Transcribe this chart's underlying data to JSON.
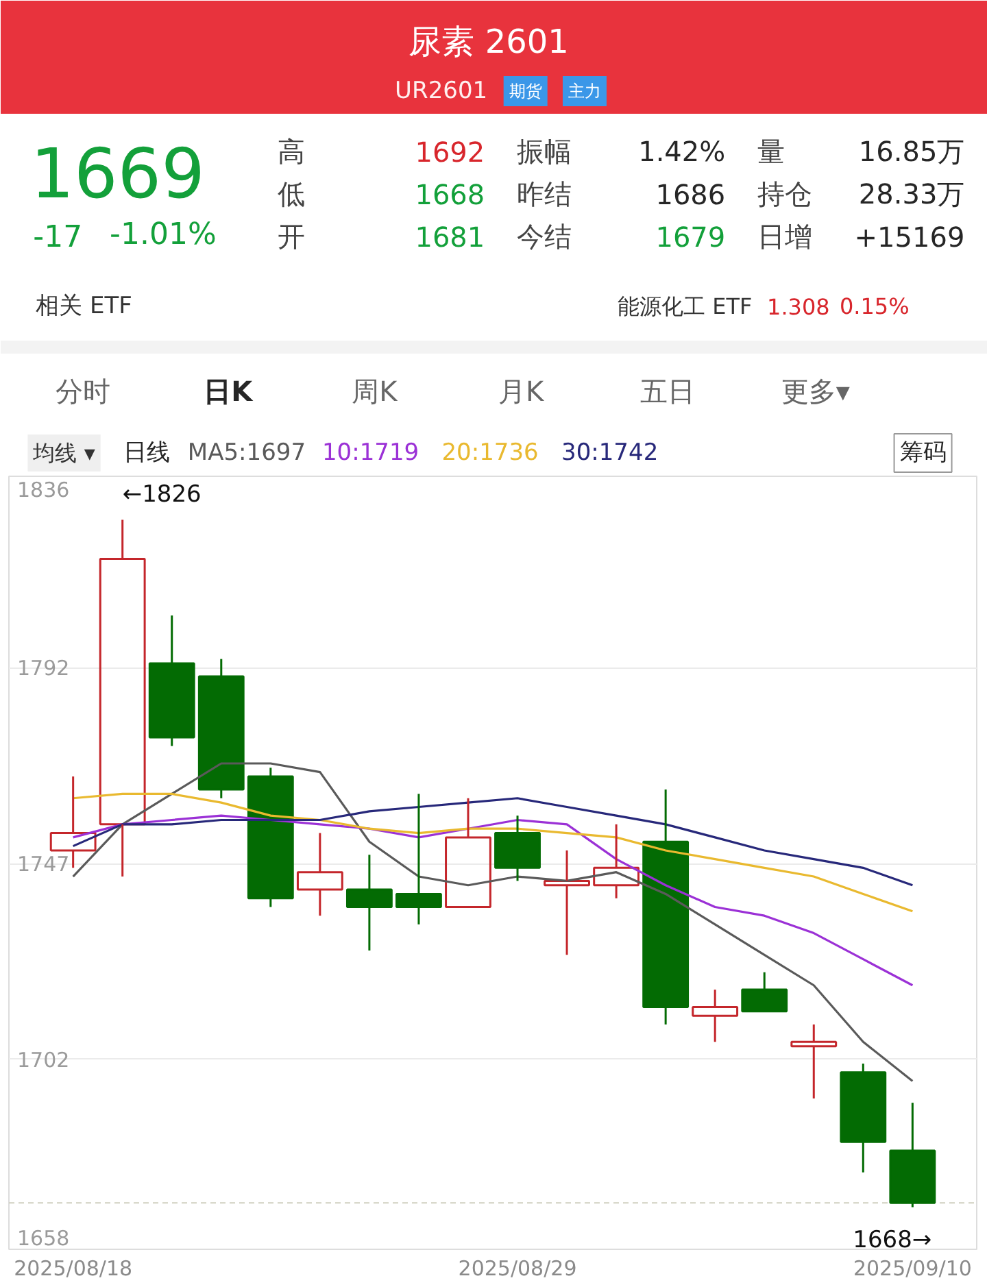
{
  "chart_data": {
    "type": "candlestick",
    "title": "尿素 2601",
    "subtitle": "UR2601",
    "categories": [
      "2025/08/18",
      null,
      null,
      null,
      null,
      null,
      null,
      null,
      null,
      "2025/08/29",
      null,
      null,
      null,
      null,
      null,
      null,
      null,
      "2025/09/10"
    ],
    "ohlc": [
      [
        1750,
        1767,
        1746,
        1754
      ],
      [
        1756,
        1826,
        1744,
        1817
      ],
      [
        1793,
        1804,
        1774,
        1776
      ],
      [
        1790,
        1794,
        1762,
        1764
      ],
      [
        1767,
        1769,
        1737,
        1739
      ],
      [
        1741,
        1754,
        1735,
        1745
      ],
      [
        1741,
        1749,
        1727,
        1737
      ],
      [
        1740,
        1763,
        1733,
        1737
      ],
      [
        1737,
        1762,
        1737,
        1753
      ],
      [
        1754,
        1758,
        1743,
        1746
      ],
      [
        1742,
        1750,
        1726,
        1743
      ],
      [
        1742,
        1756,
        1739,
        1746
      ],
      [
        1752,
        1764,
        1710,
        1714
      ],
      [
        1712,
        1718,
        1706,
        1714
      ],
      [
        1718,
        1722,
        1713,
        1713
      ],
      [
        1705,
        1710,
        1693,
        1706
      ],
      [
        1699,
        1701,
        1676,
        1683
      ],
      [
        1681,
        1692,
        1668,
        1669
      ]
    ],
    "colors": [
      "#c4262b",
      "#c4262b",
      "#036b03",
      "#036b03",
      "#036b03",
      "#c4262b",
      "#036b03",
      "#036b03",
      "#c4262b",
      "#036b03",
      "#c4262b",
      "#c4262b",
      "#036b03",
      "#c4262b",
      "#036b03",
      "#c4262b",
      "#036b03",
      "#036b03"
    ],
    "series": [
      {
        "name": "MA5:1697",
        "type": "line",
        "color": "#5a5a5a",
        "values": [
          1744,
          1756,
          1763,
          1770,
          1770,
          1768,
          1752,
          1744,
          1742,
          1744,
          1743,
          1745,
          1740,
          1733,
          1726,
          1719,
          1706,
          1697
        ]
      },
      {
        "name": "10:1719",
        "type": "line",
        "color": "#9b31d6",
        "values": [
          1753,
          1756,
          1757,
          1758,
          1757,
          1756,
          1755,
          1753,
          1755,
          1757,
          1756,
          1748,
          1742,
          1737,
          1735,
          1731,
          1725,
          1719
        ]
      },
      {
        "name": "20:1736",
        "type": "line",
        "color": "#e9b92f",
        "values": [
          1762,
          1763,
          1763,
          1761,
          1758,
          1757,
          1755,
          1754,
          1755,
          1755,
          1754,
          1753,
          1750,
          1748,
          1746,
          1744,
          1740,
          1736
        ]
      },
      {
        "name": "30:1742",
        "type": "line",
        "color": "#27287a",
        "values": [
          1751,
          1756,
          1756,
          1757,
          1757,
          1757,
          1759,
          1760,
          1761,
          1762,
          1760,
          1758,
          1756,
          1753,
          1750,
          1748,
          1746,
          1742
        ]
      }
    ],
    "ylim": [
      1658,
      1836
    ],
    "yticks": [
      1658,
      1702,
      1747,
      1792,
      1836
    ],
    "grid": "y",
    "legend": "top left",
    "ref_lines": [
      {
        "axis": "y",
        "value": 1669,
        "color": "#cfcfc0",
        "line_style": "dashed"
      }
    ],
    "annotations": [
      "期货",
      "主力",
      "1669",
      "-17",
      "-1.01%",
      "高",
      "1692",
      "振幅",
      "1.42%",
      "量",
      "16.85万",
      "低",
      "1668",
      "昨结",
      "1686",
      "持仓",
      "28.33万",
      "开",
      "1681",
      "今结",
      "1679",
      "日增",
      "+15169",
      "相关 ETF",
      "能源化工 ETF",
      "1.308",
      "0.15%",
      "分时",
      "日K",
      "周K",
      "月K",
      "五日",
      "更多▾",
      "均线 ▾",
      "日线",
      "筹码",
      "←1826",
      {
        "text": "1668→",
        "x": "2025/09/10",
        "y": 1668
      }
    ]
  }
}
